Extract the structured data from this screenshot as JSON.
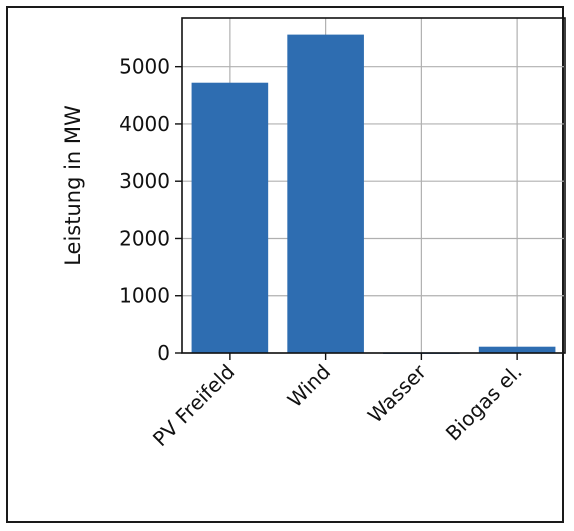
{
  "chart_data": {
    "type": "bar",
    "title": "",
    "xlabel": "",
    "ylabel": "Leistung in MW",
    "categories": [
      "PV Freifeld",
      "Wind",
      "Wasser",
      "Biogas el."
    ],
    "values": [
      4720,
      5560,
      10,
      110
    ],
    "ylim": [
      0,
      5850
    ],
    "yticks": [
      0,
      1000,
      2000,
      3000,
      4000,
      5000
    ],
    "ytick_labels": [
      "0",
      "1000",
      "2000",
      "3000",
      "4000",
      "5000"
    ],
    "grid": true,
    "bar_color": "#2e6db1",
    "x_tick_rotation": -45
  }
}
